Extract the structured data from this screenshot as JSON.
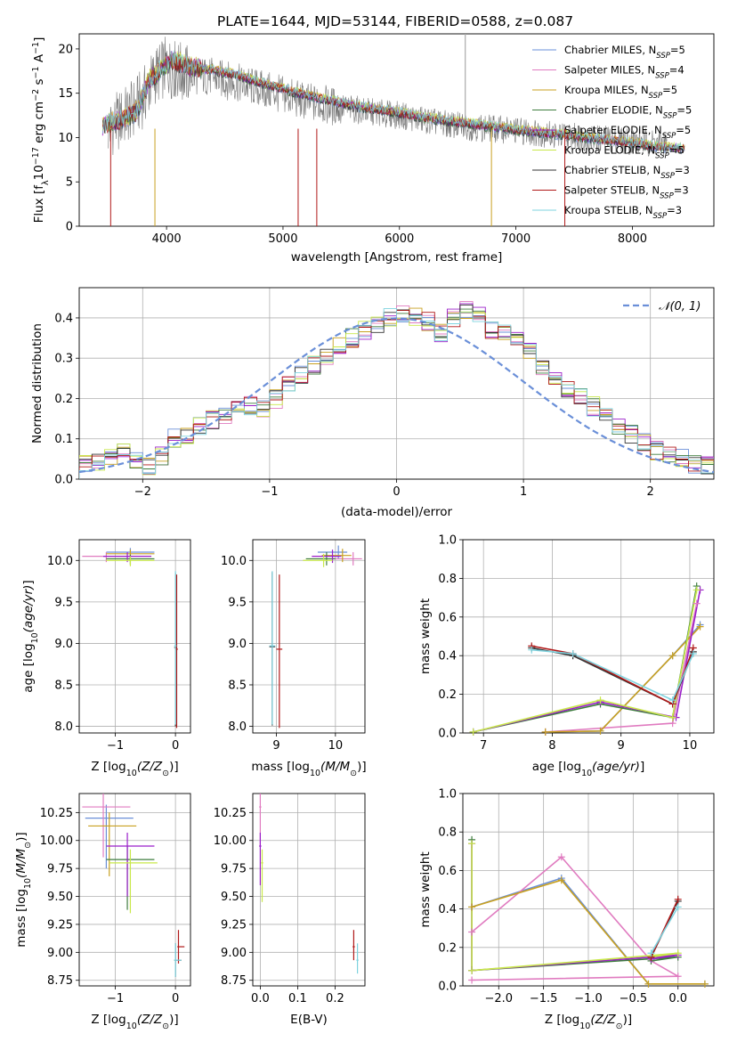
{
  "figure": {
    "title": "PLATE=1644, MJD=53144, FIBERID=0588, z=0.087"
  },
  "colors": {
    "Chabrier MILES": "#6a8fd8",
    "Salpeter MILES": "#e07bc0",
    "Kroupa MILES": "#c8a020",
    "Chabrier ELODIE": "#3f7d3f",
    "Salpeter ELODIE": "#9a1fc9",
    "Kroupa ELODIE": "#c8e84a",
    "Chabrier STELIB": "#333333",
    "Salpeter STELIB": "#b01818",
    "Kroupa STELIB": "#7fd3df",
    "data": "#777777",
    "normal": "#6a8fd8",
    "orange": "#e07a2e",
    "grid": "#b0b0b0"
  },
  "chart_data": [
    {
      "id": "spectrum",
      "type": "line",
      "title": "PLATE=1644, MJD=53144, FIBERID=0588, z=0.087",
      "xlabel": "wavelength [Angstrom, rest frame]",
      "ylabel": "Flux [f",
      "ylabel_parts": [
        "Flux [f",
        "λ",
        "10",
        "−17",
        " erg cm",
        "−2",
        " s",
        "−1",
        " A",
        "−1",
        "]"
      ],
      "xlim": [
        3250,
        8700
      ],
      "ylim": [
        0,
        21.7
      ],
      "xticks": [
        4000,
        5000,
        6000,
        7000,
        8000
      ],
      "yticks": [
        0,
        5,
        10,
        15,
        20
      ],
      "grid": false,
      "legend_position": "top-right",
      "legend": [
        {
          "name": "Chabrier MILES",
          "sub": "SSP",
          "n": "5"
        },
        {
          "name": "Salpeter MILES",
          "sub": "SSP",
          "n": "4"
        },
        {
          "name": "Kroupa MILES",
          "sub": "SSP",
          "n": "5"
        },
        {
          "name": "Chabrier ELODIE",
          "sub": "SSP",
          "n": "5"
        },
        {
          "name": "Salpeter ELODIE",
          "sub": "SSP",
          "n": "5"
        },
        {
          "name": "Kroupa ELODIE",
          "sub": "SSP",
          "n": "5"
        },
        {
          "name": "Chabrier STELIB",
          "sub": "SSP",
          "n": "3"
        },
        {
          "name": "Salpeter STELIB",
          "sub": "SSP",
          "n": "3"
        },
        {
          "name": "Kroupa STELIB",
          "sub": "SSP",
          "n": "3"
        }
      ],
      "data_series": {
        "name": "data",
        "x": [
          3500,
          3600,
          3700,
          3800,
          3900,
          4000,
          4100,
          4200,
          4300,
          4400,
          4500,
          4600,
          4800,
          5000,
          5200,
          5400,
          5600,
          5800,
          6000,
          6200,
          6400,
          6600,
          6800,
          7000,
          7200,
          7400,
          7600,
          7800,
          8000,
          8200,
          8300
        ],
        "y": [
          11.0,
          12.0,
          13.0,
          14.5,
          17.0,
          18.0,
          17.5,
          17.0,
          17.0,
          16.8,
          16.5,
          16.2,
          15.5,
          14.8,
          14.0,
          13.6,
          13.2,
          12.8,
          12.5,
          12.0,
          11.5,
          11.2,
          11.0,
          10.8,
          10.5,
          10.2,
          10.0,
          9.8,
          9.6,
          9.4,
          9.3
        ]
      },
      "model_series": {
        "x": [
          3450,
          3550,
          3650,
          3750,
          3850,
          3950,
          4050,
          4200,
          4400,
          4600,
          4800,
          5000,
          5200,
          5400,
          5600,
          5800,
          6000,
          6200,
          6400,
          6600,
          6800,
          7000,
          7200,
          7400,
          7600,
          7800,
          8000,
          8200,
          8450
        ],
        "y": [
          11.2,
          11.8,
          12.2,
          13.0,
          16.5,
          17.6,
          18.8,
          18.0,
          17.6,
          17.1,
          16.2,
          15.5,
          14.8,
          14.2,
          13.6,
          13.2,
          12.8,
          12.3,
          11.9,
          11.6,
          11.2,
          10.9,
          10.6,
          10.3,
          10.0,
          9.7,
          9.4,
          9.0,
          8.8
        ]
      }
    },
    {
      "id": "residuals",
      "type": "line",
      "xlabel": "(data-model)/error",
      "ylabel": "Normed distribution",
      "xlim": [
        -2.5,
        2.5
      ],
      "ylim": [
        0,
        0.475
      ],
      "xticks": [
        -2,
        -1,
        0,
        1,
        2
      ],
      "yticks": [
        0.0,
        0.1,
        0.2,
        0.3,
        0.4
      ],
      "grid": true,
      "legend_position": "top-right",
      "legend": [
        {
          "name": "𝒩(0, 1)"
        }
      ],
      "bin_width": 0.1,
      "bin_start": -2.5,
      "histogram_mean": [
        0.035,
        0.04,
        0.05,
        0.07,
        0.045,
        0.035,
        0.06,
        0.1,
        0.11,
        0.13,
        0.15,
        0.16,
        0.17,
        0.18,
        0.17,
        0.2,
        0.23,
        0.26,
        0.28,
        0.3,
        0.33,
        0.35,
        0.37,
        0.38,
        0.4,
        0.41,
        0.4,
        0.39,
        0.36,
        0.4,
        0.42,
        0.41,
        0.37,
        0.36,
        0.35,
        0.32,
        0.28,
        0.25,
        0.22,
        0.2,
        0.18,
        0.15,
        0.13,
        0.11,
        0.09,
        0.07,
        0.06,
        0.05,
        0.035,
        0.03
      ]
    },
    {
      "id": "age-vs-z",
      "type": "scatter",
      "xlabel": "Z [log",
      "ylabel": "age  [log",
      "xlim": [
        -1.6,
        0.25
      ],
      "ylim": [
        7.92,
        10.25
      ],
      "xticks": [
        -1,
        0
      ],
      "yticks": [
        8.0,
        8.5,
        9.0,
        9.5,
        10.0
      ],
      "grid": true,
      "points": [
        {
          "series": "Chabrier MILES",
          "x": -0.75,
          "y": 10.1
        },
        {
          "series": "Salpeter MILES",
          "x": -1.15,
          "y": 10.05
        },
        {
          "series": "Kroupa MILES",
          "x": -0.75,
          "y": 10.08
        },
        {
          "series": "Chabrier ELODIE",
          "x": -0.75,
          "y": 10.02
        },
        {
          "series": "Salpeter ELODIE",
          "x": -0.8,
          "y": 10.05
        },
        {
          "series": "Kroupa ELODIE",
          "x": -0.75,
          "y": 10.0
        },
        {
          "series": "Chabrier STELIB",
          "x": 0.0,
          "y": 8.95
        },
        {
          "series": "Salpeter STELIB",
          "x": 0.02,
          "y": 8.93
        },
        {
          "series": "Kroupa STELIB",
          "x": 0.0,
          "y": 8.97
        }
      ]
    },
    {
      "id": "age-vs-mass",
      "type": "scatter",
      "xlabel": "mass [log",
      "ylabel": "",
      "xlim": [
        8.6,
        10.5
      ],
      "ylim": [
        7.92,
        10.25
      ],
      "xticks": [
        9,
        10
      ],
      "yticks": [
        8.0,
        8.5,
        9.0,
        9.5,
        10.0
      ],
      "grid": true,
      "points": [
        {
          "series": "Chabrier MILES",
          "x": 10.05,
          "y": 10.1
        },
        {
          "series": "Salpeter MILES",
          "x": 10.3,
          "y": 10.02
        },
        {
          "series": "Kroupa MILES",
          "x": 10.12,
          "y": 10.06
        },
        {
          "series": "Chabrier ELODIE",
          "x": 9.85,
          "y": 10.02
        },
        {
          "series": "Salpeter ELODIE",
          "x": 9.95,
          "y": 10.05
        },
        {
          "series": "Kroupa ELODIE",
          "x": 9.8,
          "y": 10.0
        },
        {
          "series": "Chabrier STELIB",
          "x": 8.93,
          "y": 8.96
        },
        {
          "series": "Salpeter STELIB",
          "x": 9.05,
          "y": 8.93
        },
        {
          "series": "Kroupa STELIB",
          "x": 8.93,
          "y": 8.97
        }
      ]
    },
    {
      "id": "mass-weight-vs-age",
      "type": "line",
      "xlabel": "age  [log",
      "ylabel": "mass weight",
      "xlim": [
        6.7,
        10.35
      ],
      "ylim": [
        0,
        1.0
      ],
      "xticks": [
        7,
        8,
        9,
        10
      ],
      "yticks": [
        0.0,
        0.2,
        0.4,
        0.6,
        0.8,
        1.0
      ],
      "grid": true,
      "series": [
        {
          "name": "Chabrier MILES",
          "x": [
            7.9,
            8.7,
            9.75,
            10.15
          ],
          "y": [
            0.005,
            0.01,
            0.4,
            0.56
          ]
        },
        {
          "name": "Salpeter MILES",
          "x": [
            7.9,
            9.75,
            10.1
          ],
          "y": [
            0.005,
            0.05,
            0.67
          ]
        },
        {
          "name": "Kroupa MILES",
          "x": [
            7.9,
            8.7,
            9.75,
            10.15
          ],
          "y": [
            0.005,
            0.01,
            0.4,
            0.55
          ]
        },
        {
          "name": "Chabrier ELODIE",
          "x": [
            6.85,
            8.7,
            9.75,
            10.1
          ],
          "y": [
            0.005,
            0.15,
            0.08,
            0.76
          ]
        },
        {
          "name": "Salpeter ELODIE",
          "x": [
            6.85,
            8.7,
            9.8,
            10.15
          ],
          "y": [
            0.005,
            0.16,
            0.08,
            0.74
          ]
        },
        {
          "name": "Kroupa ELODIE",
          "x": [
            6.85,
            8.7,
            9.75,
            10.1
          ],
          "y": [
            0.005,
            0.17,
            0.08,
            0.74
          ]
        },
        {
          "name": "Chabrier STELIB",
          "x": [
            7.7,
            8.3,
            9.75,
            10.05
          ],
          "y": [
            0.44,
            0.4,
            0.15,
            0.42
          ]
        },
        {
          "name": "Salpeter STELIB",
          "x": [
            7.7,
            8.3,
            9.75,
            10.05
          ],
          "y": [
            0.45,
            0.41,
            0.15,
            0.44
          ]
        },
        {
          "name": "Kroupa STELIB",
          "x": [
            7.7,
            8.3,
            9.75,
            10.05
          ],
          "y": [
            0.43,
            0.41,
            0.17,
            0.41
          ]
        }
      ]
    },
    {
      "id": "mass-vs-z",
      "type": "scatter",
      "xlabel": "Z [log",
      "ylabel": "mass [log",
      "xlim": [
        -1.6,
        0.25
      ],
      "ylim": [
        8.7,
        10.42
      ],
      "xticks": [
        -1,
        0
      ],
      "yticks": [
        8.75,
        9.0,
        9.25,
        9.5,
        9.75,
        10.0,
        10.25
      ],
      "grid": true,
      "points": [
        {
          "series": "Chabrier MILES",
          "x": -1.15,
          "y": 10.2
        },
        {
          "series": "Salpeter MILES",
          "x": -1.2,
          "y": 10.3
        },
        {
          "series": "Kroupa MILES",
          "x": -1.1,
          "y": 10.13
        },
        {
          "series": "Chabrier ELODIE",
          "x": -0.8,
          "y": 9.83
        },
        {
          "series": "Salpeter ELODIE",
          "x": -0.8,
          "y": 9.95
        },
        {
          "series": "Kroupa ELODIE",
          "x": -0.75,
          "y": 9.8
        },
        {
          "series": "Chabrier STELIB",
          "x": 0.0,
          "y": 8.93
        },
        {
          "series": "Salpeter STELIB",
          "x": 0.05,
          "y": 9.05
        },
        {
          "series": "Kroupa STELIB",
          "x": 0.0,
          "y": 8.93
        }
      ]
    },
    {
      "id": "mass-vs-ebv",
      "type": "scatter",
      "xlabel": "E(B-V)",
      "ylabel": "",
      "xlim": [
        -0.02,
        0.28
      ],
      "ylim": [
        8.7,
        10.42
      ],
      "xticks": [
        0.0,
        0.1,
        0.2
      ],
      "yticks": [
        8.75,
        9.0,
        9.25,
        9.5,
        9.75,
        10.0,
        10.25
      ],
      "grid": true,
      "points": [
        {
          "series": "Salpeter MILES",
          "x": 0.0,
          "y": 10.3
        },
        {
          "series": "Salpeter ELODIE",
          "x": 0.0,
          "y": 9.95
        },
        {
          "series": "Kroupa ELODIE",
          "x": 0.005,
          "y": 9.8
        },
        {
          "series": "Salpeter STELIB",
          "x": 0.25,
          "y": 9.05
        },
        {
          "series": "Kroupa STELIB",
          "x": 0.26,
          "y": 8.93
        }
      ]
    },
    {
      "id": "mass-weight-vs-z",
      "type": "line",
      "xlabel": "Z [log",
      "ylabel": "mass weight",
      "xlim": [
        -2.4,
        0.4
      ],
      "ylim": [
        0,
        1.0
      ],
      "xticks": [
        -2.0,
        -1.5,
        -1.0,
        -0.5,
        0.0
      ],
      "yticks": [
        0.0,
        0.2,
        0.4,
        0.6,
        0.8,
        1.0
      ],
      "grid": true,
      "series": [
        {
          "name": "Chabrier MILES",
          "x": [
            -2.3,
            -1.3,
            -0.33,
            0.3
          ],
          "y": [
            0.41,
            0.56,
            0.01,
            0.01
          ]
        },
        {
          "name": "Salpeter MILES",
          "x": [
            -2.3,
            -1.3,
            -0.3,
            0.0,
            -2.3
          ],
          "y": [
            0.28,
            0.67,
            0.13,
            0.05,
            0.03
          ]
        },
        {
          "name": "Kroupa MILES",
          "x": [
            -2.3,
            -1.3,
            -0.33,
            0.3
          ],
          "y": [
            0.41,
            0.55,
            0.01,
            0.01
          ]
        },
        {
          "name": "Chabrier ELODIE",
          "x": [
            -2.3,
            -2.3,
            0.0,
            -0.3
          ],
          "y": [
            0.76,
            0.08,
            0.15,
            0.13
          ]
        },
        {
          "name": "Salpeter ELODIE",
          "x": [
            -2.3,
            -2.3,
            0.0,
            -0.3
          ],
          "y": [
            0.74,
            0.08,
            0.16,
            0.14
          ]
        },
        {
          "name": "Kroupa ELODIE",
          "x": [
            -2.3,
            -2.3,
            0.0,
            -0.3
          ],
          "y": [
            0.74,
            0.08,
            0.17,
            0.15
          ]
        },
        {
          "name": "Chabrier STELIB",
          "x": [
            -0.3,
            0.0
          ],
          "y": [
            0.15,
            0.44
          ]
        },
        {
          "name": "Salpeter STELIB",
          "x": [
            -0.3,
            0.0
          ],
          "y": [
            0.15,
            0.45
          ]
        },
        {
          "name": "Kroupa STELIB",
          "x": [
            -0.3,
            0.0
          ],
          "y": [
            0.17,
            0.41
          ]
        }
      ]
    }
  ]
}
